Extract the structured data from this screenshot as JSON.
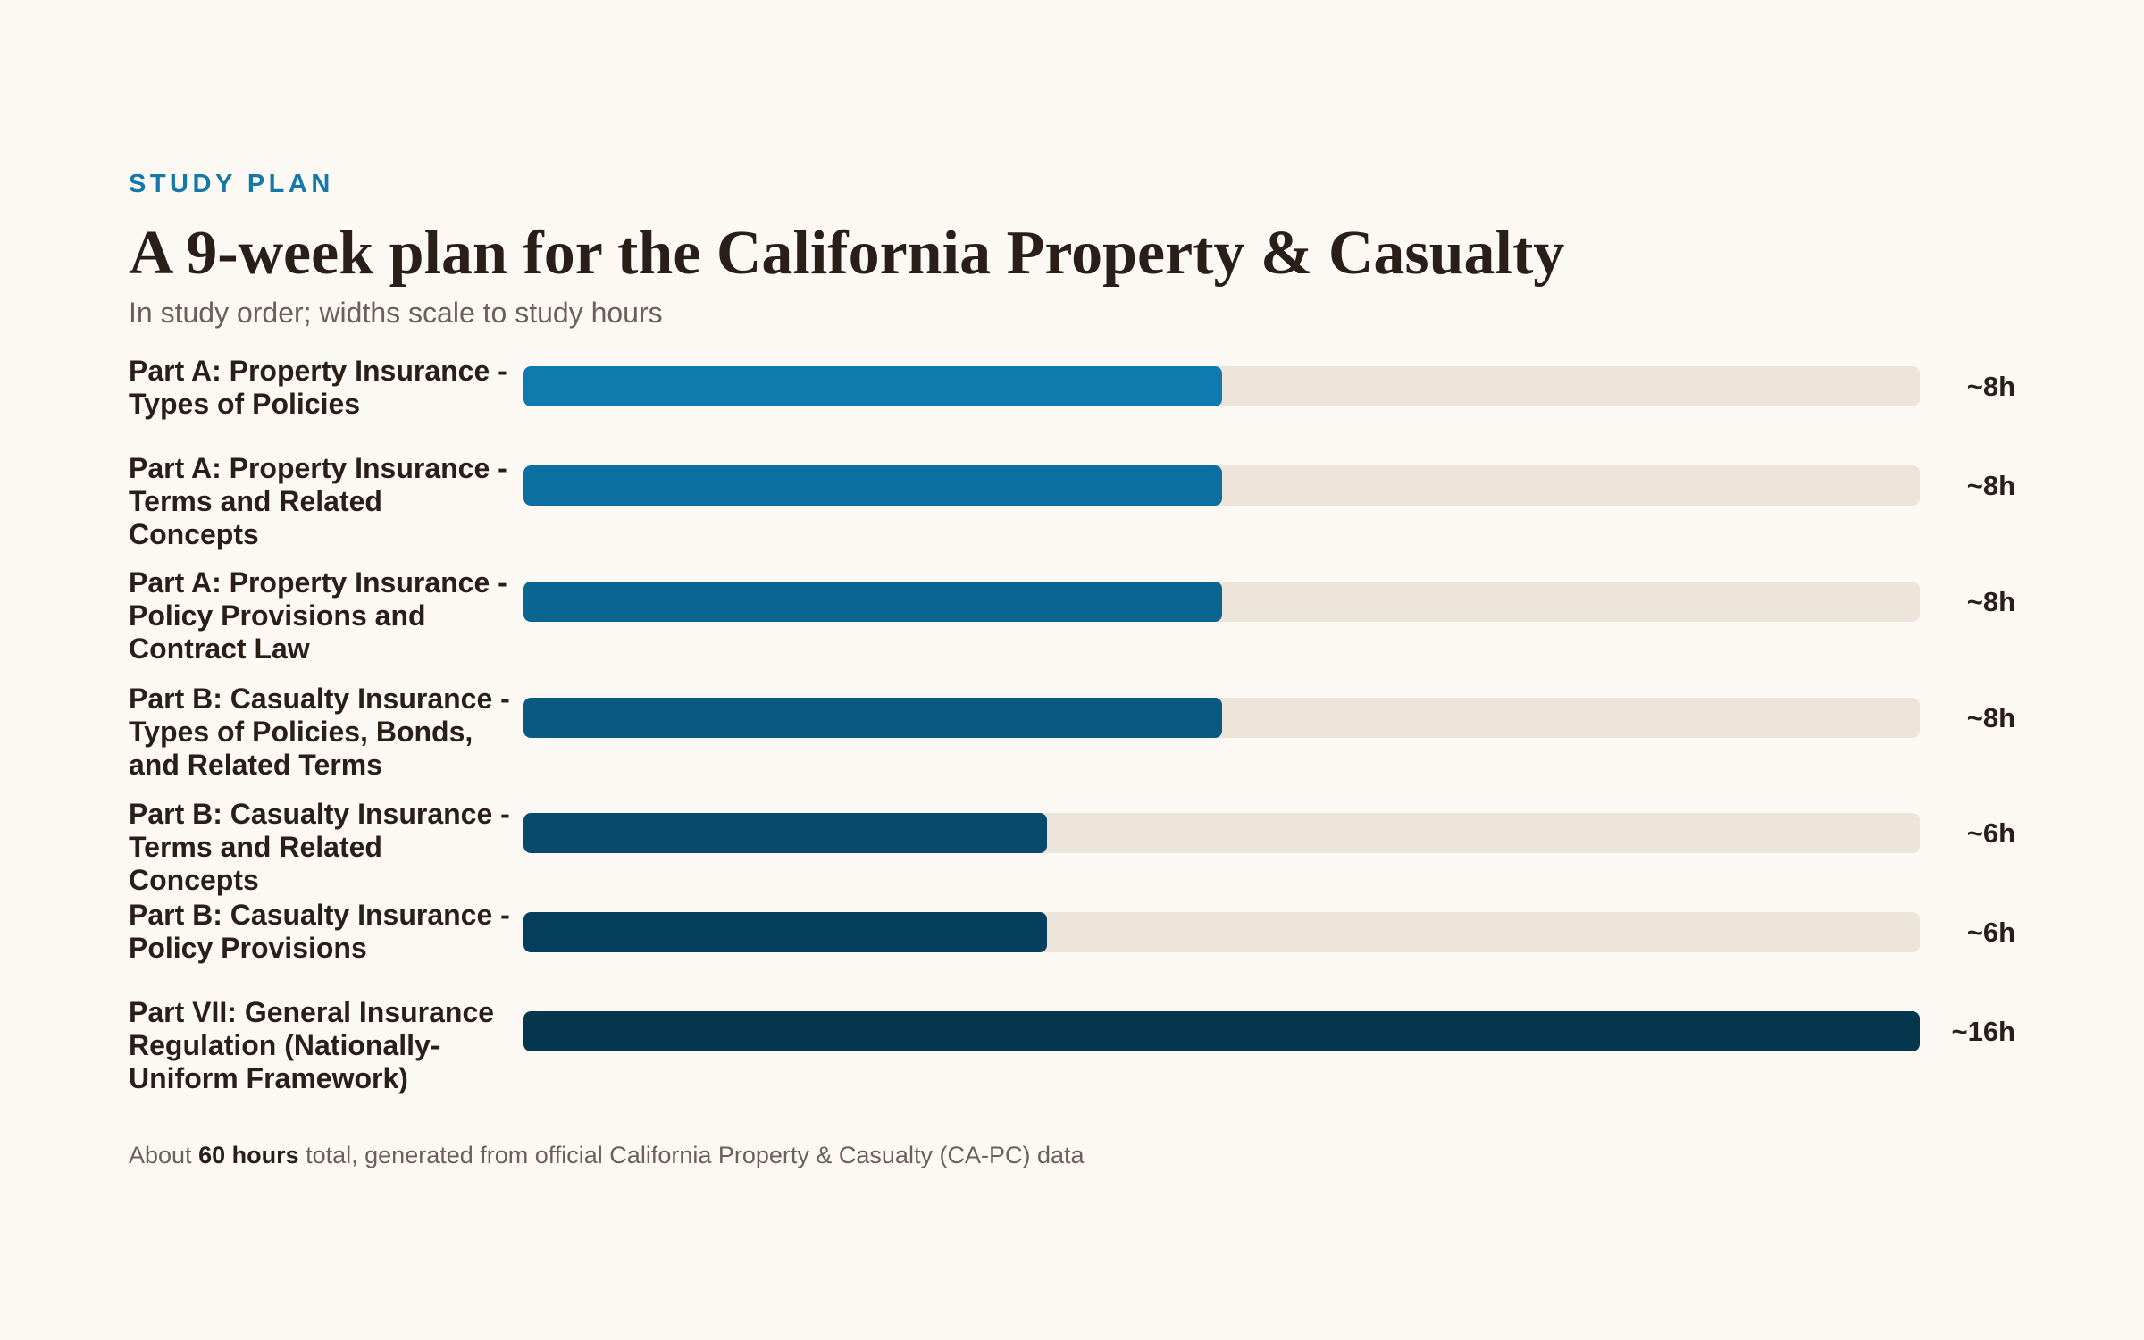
{
  "header": {
    "eyebrow": "STUDY PLAN",
    "title": "A 9-week plan for the California Property & Casualty",
    "subtitle": "In study order; widths scale to study hours"
  },
  "chart_data": {
    "type": "bar",
    "orientation": "horizontal",
    "xlim": [
      0,
      16
    ],
    "categories": [
      "Part A: Property Insurance - Types of Policies",
      "Part A: Property Insurance - Terms and Related Concepts",
      "Part A: Property Insurance - Policy Provisions and Contract Law",
      "Part B: Casualty Insurance - Types of Policies, Bonds, and Related Terms",
      "Part B: Casualty Insurance - Terms and Related Concepts",
      "Part B: Casualty Insurance - Policy Provisions",
      "Part VII: General Insurance Regulation (Nationally-Uniform Framework)"
    ],
    "values": [
      8,
      8,
      8,
      8,
      6,
      6,
      16
    ],
    "value_labels": [
      "~8h",
      "~8h",
      "~8h",
      "~8h",
      "~6h",
      "~6h",
      "~16h"
    ],
    "colors": [
      "#0e7aad",
      "#0b6f9f",
      "#0a6590",
      "#095980",
      "#074a6d",
      "#063e5e",
      "#05374f"
    ],
    "track_color": "#ede4da"
  },
  "footer": {
    "prefix": "About ",
    "total": "60 hours",
    "suffix": " total, generated from official California Property & Casualty (CA-PC) data"
  }
}
